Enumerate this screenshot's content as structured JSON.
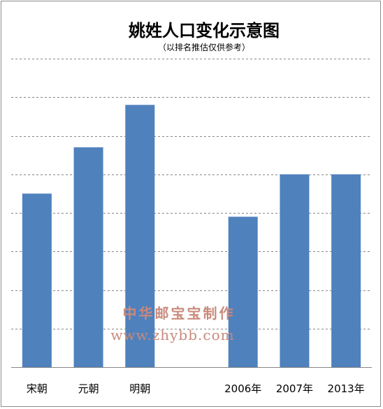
{
  "chart_data": {
    "type": "bar",
    "title": "姚姓人口变化示意图",
    "subtitle": "（以排名推估仅供参考）",
    "xlabel": "",
    "ylabel": "",
    "categories": [
      "宋朝",
      "元朝",
      "明朝",
      "",
      "2006年",
      "2007年",
      "2013年"
    ],
    "values": [
      4.5,
      5.7,
      6.8,
      null,
      3.9,
      5.0,
      5.0
    ],
    "ylim": [
      0,
      8
    ],
    "y_tick_labels_shown": false,
    "grid": true,
    "bar_color": "#4f81bd",
    "grid_color": "#868686"
  },
  "watermark": {
    "line1": "中华邮宝宝制作",
    "line2": "www.zhybb.com",
    "color": "#c98a7c"
  }
}
